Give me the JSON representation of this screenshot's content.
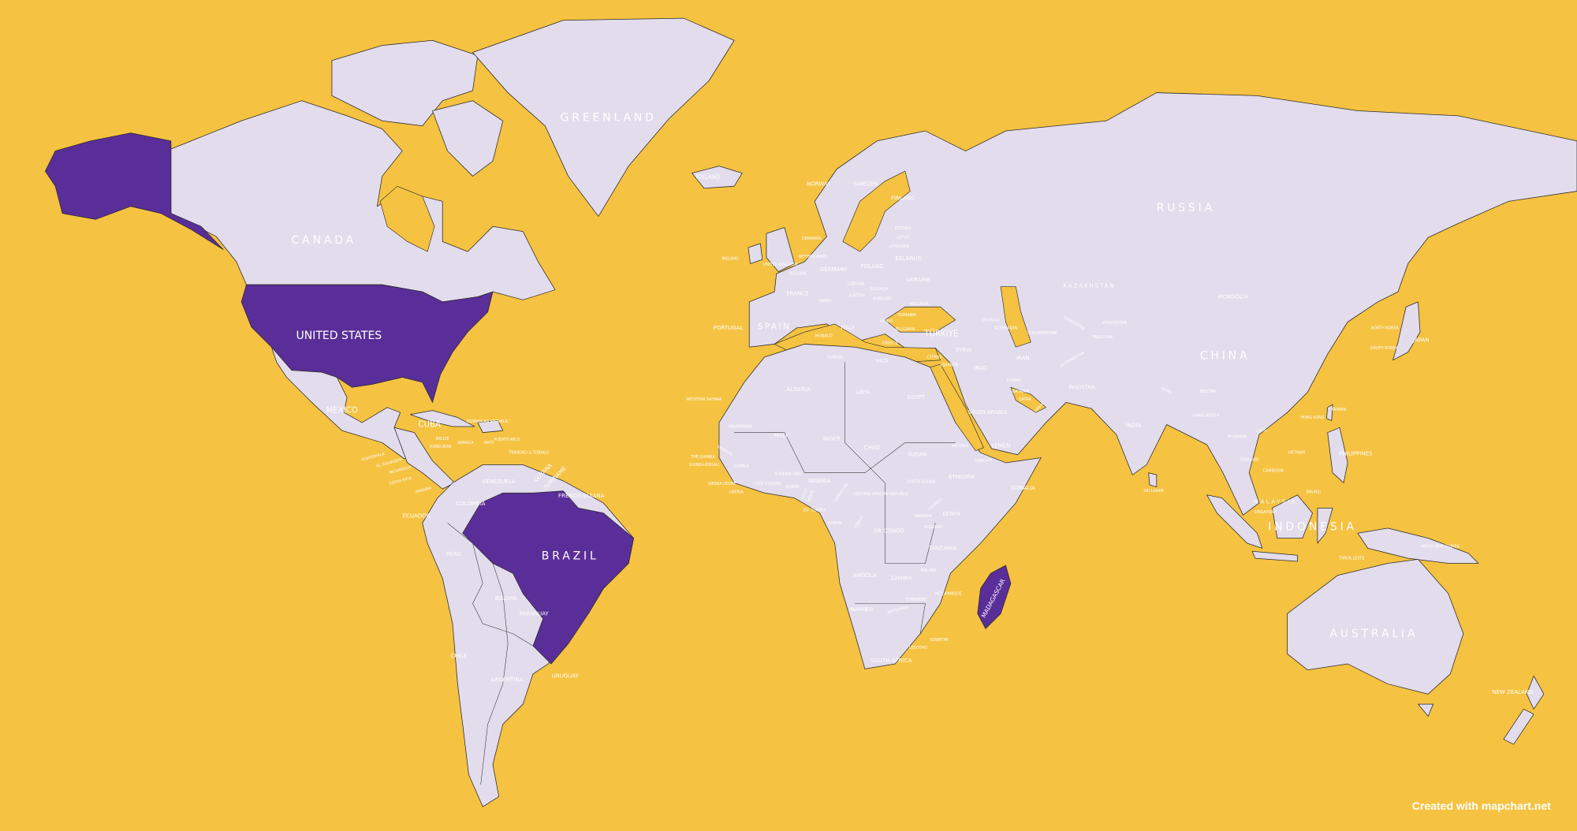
{
  "colors": {
    "ocean": "#f5c242",
    "land": "#e2dcec",
    "highlight": "#5a2e98",
    "label": "#ffffff"
  },
  "highlighted_countries": [
    "United States",
    "Brazil",
    "Madagascar"
  ],
  "labels": {
    "greenland": "GREENLAND",
    "canada": "CANADA",
    "united_states": "UNITED STATES",
    "mexico": "MEXICO",
    "cuba": "CUBA",
    "dominican_republic": "DOMINICAN REPUBLIC",
    "puerto_rico": "PUERTO RICO",
    "jamaica": "JAMAICA",
    "haiti": "HAITI",
    "belize": "BELIZE",
    "honduras": "HONDURAS",
    "guatemala": "GUATEMALA",
    "el_salvador": "EL SALVADOR",
    "nicaragua": "NICARAGUA",
    "costa_rica": "COSTA RICA",
    "panama": "PANAMA",
    "trinidad": "TRINIDAD & TOBAGO",
    "venezuela": "VENEZUELA",
    "guyana": "GUYANA",
    "suriname": "SURINAME",
    "french_guiana": "FRENCH GUIANA",
    "colombia": "COLOMBIA",
    "ecuador": "ECUADOR",
    "peru": "PERU",
    "brazil": "BRAZIL",
    "bolivia": "BOLIVIA",
    "paraguay": "PARAGUAY",
    "chile": "CHILE",
    "argentina": "ARGENTINA",
    "uruguay": "URUGUAY",
    "iceland": "ICELAND",
    "norway": "NORWAY",
    "sweden": "SWEDEN",
    "finland": "FINLAND",
    "denmark": "DENMARK",
    "ireland": "IRELAND",
    "united_kingdom": "UNITED KINGDOM",
    "netherlands": "NETHERLANDS",
    "belgium": "BELGIUM",
    "germany": "GERMANY",
    "poland": "POLAND",
    "estonia": "ESTONIA",
    "latvia": "LATVIA",
    "lithuania": "LITHUANIA",
    "belarus": "BELARUS",
    "ukraine": "UKRAINE",
    "czechia": "CZECHIA",
    "slovakia": "SLOVAKIA",
    "austria": "AUSTRIA",
    "hungary": "HUNGARY",
    "moldova": "MOLDOVA",
    "romania": "ROMANIA",
    "france": "FRANCE",
    "switzerland": "SWITZ.",
    "italy": "ITALY",
    "monaco": "MONACO",
    "serbia": "SERBIA",
    "bulgaria": "BULGARIA",
    "greece": "GREECE",
    "spain": "SPAIN",
    "portugal": "PORTUGAL",
    "malta": "MALTA",
    "cyprus": "CYPRUS",
    "lebanon": "LEBANON",
    "turkiye": "TÜRKIYE",
    "georgia": "GEORGIA",
    "azerbaijan": "AZERBAIJAN",
    "syria": "SYRIA",
    "iraq": "IRAQ",
    "iran": "IRAN",
    "russia": "RUSSIA",
    "kazakhstan": "KAZAKHSTAN",
    "mongolia": "MONGOLIA",
    "uzbekistan": "UZBEKISTAN",
    "turkmenistan": "TURKMENISTAN",
    "kyrgyzstan": "KYRGYZSTAN",
    "tajikistan": "TAJIKISTAN",
    "afghanistan": "AFGHANISTAN",
    "pakistan": "PAKISTAN",
    "china": "CHINA",
    "north_korea": "NORTH KOREA",
    "south_korea": "SOUTH KOREA",
    "japan": "JAPAN",
    "nepal": "NEPAL",
    "bhutan": "BHUTAN",
    "bangladesh": "BANGLADESH",
    "india": "INDIA",
    "sri_lanka": "SRI LANKA",
    "myanmar": "MYANMAR",
    "laos": "LAOS",
    "thailand": "THAILAND",
    "cambodia": "CAMBODIA",
    "vietnam": "VIETNAM",
    "taiwan": "TAIWAN",
    "hong_kong": "HONG KONG",
    "philippines": "PHILIPPINES",
    "malaysia": "MALAYSIA",
    "singapore": "SINGAPORE",
    "brunei": "BRUNEI",
    "indonesia": "INDONESIA",
    "timor_leste": "TIMOR-LESTE",
    "papua_new_guinea": "PAPUA NEW GUINEA",
    "australia": "AUSTRALIA",
    "new_zealand": "NEW ZEALAND",
    "saudi_arabia": "SAUDI ARABIA",
    "kuwait": "KUWAIT",
    "bahrain": "BAHRAIN",
    "qatar": "QATAR",
    "oman": "OMAN",
    "yemen": "YEMEN",
    "western_sahara": "WESTERN SAHARA",
    "algeria": "ALGERIA",
    "tunisia": "TUNISIA",
    "libya": "LIBYA",
    "egypt": "EGYPT",
    "mauritania": "MAURITANIA",
    "mali": "MALI",
    "niger": "NIGER",
    "chad": "CHAD",
    "sudan": "SUDAN",
    "eritrea": "ERITREA",
    "djibouti": "DJIBOUTI",
    "senegal": "SENEGAL",
    "the_gambia": "THE GAMBIA",
    "guinea_bissau": "GUINEA-BISSAU",
    "guinea": "GUINEA",
    "sierra_leone": "SIERRA LEONE",
    "liberia": "LIBERIA",
    "cote_divoire": "COTE D'IVOIRE",
    "burkina_faso": "BURKINA FASO",
    "ghana": "GHANA",
    "togo": "TOGO",
    "benin": "BENIN",
    "nigeria": "NIGERIA",
    "cameroon": "CAMEROON",
    "central_african_republic": "CENTRAL AFRICAN REPUBLIC",
    "south_sudan": "SOUTH SUDAN",
    "ethiopia": "ETHIOPIA",
    "somalia": "SOMALIA",
    "eq_guinea": "EQ. GUINEA",
    "gabon": "GABON",
    "congo": "CONGO",
    "dr_congo": "DR CONGO",
    "uganda": "UGANDA",
    "kenya": "KENYA",
    "rwanda": "RWANDA",
    "burundi": "BURUNDI",
    "tanzania": "TANZANIA",
    "angola": "ANGOLA",
    "zambia": "ZAMBIA",
    "malawi": "MALAWI",
    "mozambique": "MOZAMBIQUE",
    "zimbabwe": "ZIMBABWE",
    "namibia": "NAMIBIA",
    "botswana": "BOTSWANA",
    "eswatini": "ESWATINI",
    "lesotho": "LESOTHO",
    "south_africa": "SOUTH AFRICA",
    "madagascar": "MADAGASCAR"
  },
  "credit": "Created with mapchart.net"
}
